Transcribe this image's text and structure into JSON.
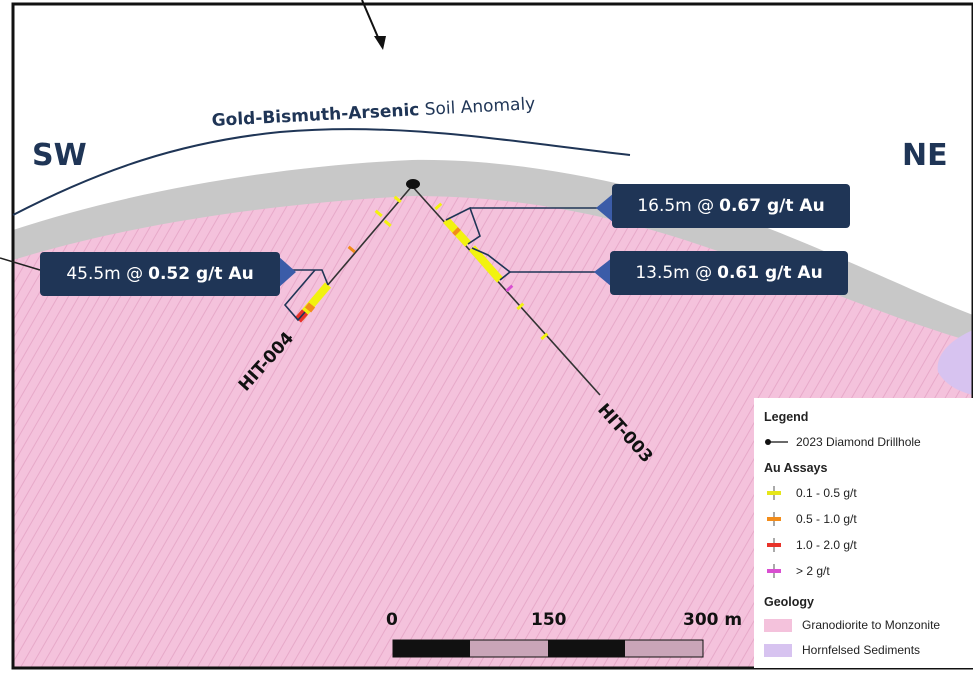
{
  "map": {
    "anomaly_label_bold": "Gold-Bismuth-Arsenic",
    "anomaly_label_rest": " Soil Anomaly",
    "dir_sw": "SW",
    "dir_ne": "NE"
  },
  "holes": [
    {
      "id": "HIT-004"
    },
    {
      "id": "HIT-003"
    }
  ],
  "callouts": [
    {
      "interval": "45.5m @",
      "grade": "0.52 g/t Au"
    },
    {
      "interval": "16.5m @",
      "grade": "0.67 g/t Au"
    },
    {
      "interval": "13.5m @",
      "grade": "0.61 g/t Au"
    }
  ],
  "colors": {
    "granodiorite": "#f4c2dc",
    "hornfels": "#d7c3f0",
    "cover": "#c8c8c8",
    "navy": "#1f3556",
    "assay_01_05": "#f2f20f",
    "assay_05_10": "#f28c1a",
    "assay_10_20": "#e8332a",
    "assay_gt2": "#d94fd1"
  },
  "legend": {
    "title": "Legend",
    "drillhole": "2023 Diamond Drillhole",
    "assays_title": "Au Assays",
    "assays": [
      "0.1 - 0.5 g/t",
      "0.5 - 1.0 g/t",
      "1.0 - 2.0 g/t",
      "> 2 g/t"
    ],
    "geology_title": "Geology",
    "geology": [
      "Granodiorite to Monzonite",
      "Hornfelsed Sediments"
    ]
  },
  "scale": {
    "labels": [
      "0",
      "150",
      "300 m"
    ]
  }
}
